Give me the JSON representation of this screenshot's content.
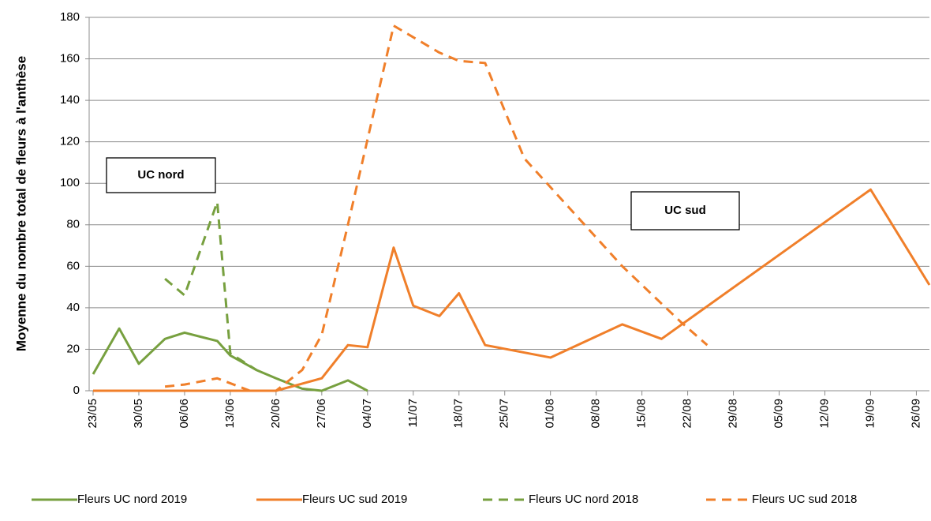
{
  "chart_data": {
    "type": "line",
    "y_label": "Moyenne du nombre total de fleurs à l'anthèse",
    "xlim": [
      "23/05",
      "28/09"
    ],
    "xticks": [
      "23/05",
      "30/05",
      "06/06",
      "13/06",
      "20/06",
      "27/06",
      "04/07",
      "11/07",
      "18/07",
      "25/07",
      "01/08",
      "08/08",
      "15/08",
      "22/08",
      "29/08",
      "05/09",
      "12/09",
      "19/09",
      "26/09"
    ],
    "ylim": [
      0,
      180
    ],
    "yticks": [
      0,
      20,
      40,
      60,
      80,
      100,
      120,
      140,
      160,
      180
    ],
    "grid": true,
    "legend": "bottom",
    "annotations": [
      "UC nord",
      "UC sud"
    ],
    "series": [
      {
        "name": "Fleurs UC nord 2019",
        "color": "#77a03f",
        "dashed": false,
        "x": [
          "23/05",
          "27/05",
          "30/05",
          "03/06",
          "06/06",
          "11/06",
          "13/06",
          "17/06",
          "20/06",
          "24/06",
          "27/06",
          "01/07",
          "04/07"
        ],
        "values": [
          8,
          30,
          13,
          25,
          28,
          24,
          17,
          10,
          6,
          1,
          0,
          5,
          0
        ]
      },
      {
        "name": "Fleurs UC sud 2019",
        "color": "#f07f2a",
        "dashed": false,
        "x": [
          "23/05",
          "20/06",
          "27/06",
          "01/07",
          "04/07",
          "08/07",
          "11/07",
          "15/07",
          "18/07",
          "22/07",
          "01/08",
          "12/08",
          "18/08",
          "19/09",
          "28/09"
        ],
        "values": [
          0,
          0,
          6,
          22,
          21,
          69,
          41,
          36,
          47,
          22,
          16,
          32,
          25,
          97,
          51
        ]
      },
      {
        "name": "Fleurs UC nord 2018",
        "color": "#77a03f",
        "dashed": true,
        "x": [
          "03/06",
          "06/06",
          "11/06",
          "13/06",
          "17/06"
        ],
        "values": [
          54,
          46,
          91,
          18,
          10
        ]
      },
      {
        "name": "Fleurs UC sud 2018",
        "color": "#f07f2a",
        "dashed": true,
        "x": [
          "03/06",
          "06/06",
          "11/06",
          "16/06",
          "20/06",
          "24/06",
          "27/06",
          "01/07",
          "08/07",
          "15/07",
          "18/07",
          "22/07",
          "28/07",
          "12/08",
          "21/08",
          "25/08"
        ],
        "values": [
          2,
          3,
          6,
          0,
          0,
          10,
          27,
          80,
          176,
          163,
          159,
          158,
          112,
          60,
          33,
          22
        ]
      }
    ]
  }
}
